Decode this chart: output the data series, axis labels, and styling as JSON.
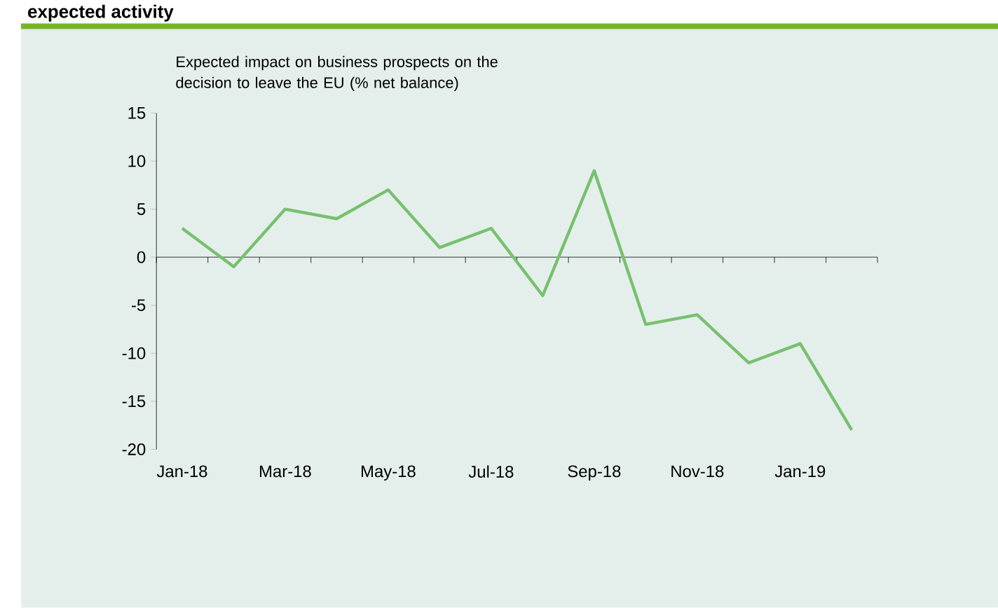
{
  "chart_data": {
    "type": "line",
    "title": "expected activity",
    "ylabel": "Expected impact on business prospects on the decision to leave the EU (% net balance)",
    "categories": [
      "Jan-18",
      null,
      "Mar-18",
      null,
      "May-18",
      null,
      "Jul-18",
      null,
      "Sep-18",
      null,
      "Nov-18",
      null,
      "Jan-19",
      null
    ],
    "series": [
      {
        "color": "#77c06e",
        "values": [
          3,
          -1,
          5,
          4,
          7,
          1,
          3,
          -4,
          9,
          -7,
          -6,
          -11,
          -9,
          -18
        ]
      }
    ],
    "ylim": [
      -20,
      15
    ],
    "yticks": [
      -20,
      -15,
      -10,
      -5,
      0,
      5,
      10,
      15
    ],
    "marker": "none",
    "line_style": "solid"
  }
}
